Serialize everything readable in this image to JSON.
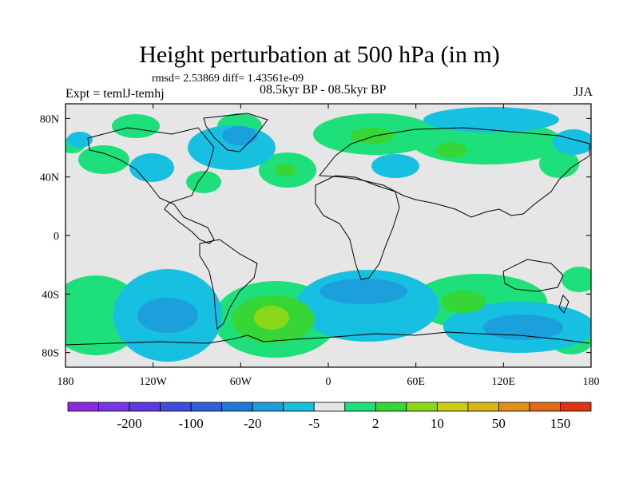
{
  "title": "Height perturbation at 500 hPa (in m)",
  "stats": "rmsd= 2.53869 diff= 1.43561e-09",
  "experiment": "Expt = temlJ-temhj",
  "period": "08.5kyr BP - 08.5kyr BP",
  "season": "JJA",
  "map": {
    "lon_range": [
      -180,
      180
    ],
    "lat_range": [
      -90,
      90
    ],
    "lat_ticks": [
      {
        "value": 80,
        "label": "80N"
      },
      {
        "value": 40,
        "label": "40N"
      },
      {
        "value": 0,
        "label": "0"
      },
      {
        "value": -40,
        "label": "40S"
      },
      {
        "value": -80,
        "label": "80S"
      }
    ],
    "lon_ticks": [
      {
        "value": -180,
        "label": "180"
      },
      {
        "value": -120,
        "label": "120W"
      },
      {
        "value": -60,
        "label": "60W"
      },
      {
        "value": 0,
        "label": "0"
      },
      {
        "value": 60,
        "label": "60E"
      },
      {
        "value": 120,
        "label": "120E"
      },
      {
        "value": 180,
        "label": "180"
      }
    ],
    "background_color": "#e6e6e6"
  },
  "colorbar": {
    "colors": [
      "#8a2be2",
      "#7b35e8",
      "#5b3be0",
      "#3e4ddb",
      "#2e60d8",
      "#1f79d6",
      "#1ba0dc",
      "#17bfe0",
      "#e6e6e6",
      "#1ee07a",
      "#36d636",
      "#8ad81a",
      "#c8cc14",
      "#d8b414",
      "#e0901a",
      "#e06a18",
      "#e03214"
    ],
    "labels": [
      {
        "after_index": 1,
        "text": "-200"
      },
      {
        "after_index": 3,
        "text": "-100"
      },
      {
        "after_index": 5,
        "text": "-20"
      },
      {
        "after_index": 7,
        "text": "-5"
      },
      {
        "after_index": 9,
        "text": "2"
      },
      {
        "after_index": 11,
        "text": "10"
      },
      {
        "after_index": 13,
        "text": "50"
      },
      {
        "after_index": 15,
        "text": "150"
      }
    ]
  }
}
